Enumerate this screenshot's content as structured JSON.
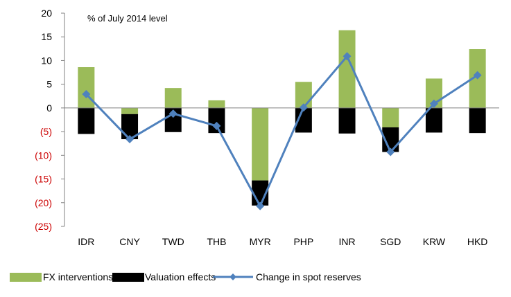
{
  "chart_data": {
    "type": "bar",
    "note": "% of July 2014 level",
    "categories": [
      "IDR",
      "CNY",
      "TWD",
      "THB",
      "MYR",
      "PHP",
      "INR",
      "SGD",
      "KRW",
      "HKD"
    ],
    "series": [
      {
        "name": "FX interventions",
        "kind": "bar",
        "color": "#9bbb59",
        "values": [
          8.6,
          -1.3,
          4.2,
          1.6,
          -15.3,
          5.5,
          16.4,
          -4.1,
          6.2,
          12.4
        ]
      },
      {
        "name": "Valuation effects",
        "kind": "bar",
        "color": "#000000",
        "values": [
          -5.5,
          -5.3,
          -5.1,
          -5.3,
          -5.3,
          -5.2,
          -5.4,
          -5.2,
          -5.2,
          -5.3
        ]
      },
      {
        "name": "Change in spot reserves",
        "kind": "line",
        "color": "#4f81bd",
        "values": [
          2.9,
          -6.6,
          -1.2,
          -3.8,
          -20.7,
          0.1,
          10.9,
          -9.3,
          0.9,
          6.9
        ]
      }
    ],
    "ylim": [
      -25,
      20
    ],
    "yticks": [
      20,
      15,
      10,
      5,
      0,
      -5,
      -10,
      -15,
      -20,
      -25
    ],
    "ytick_labels": [
      "20",
      "15",
      "10",
      "5",
      "0",
      "(5)",
      "(10)",
      "(15)",
      "(20)",
      "(25)"
    ],
    "negative_tick_color": "#cc0000",
    "positive_tick_color": "#000000",
    "grid": false,
    "legend_position": "bottom"
  }
}
